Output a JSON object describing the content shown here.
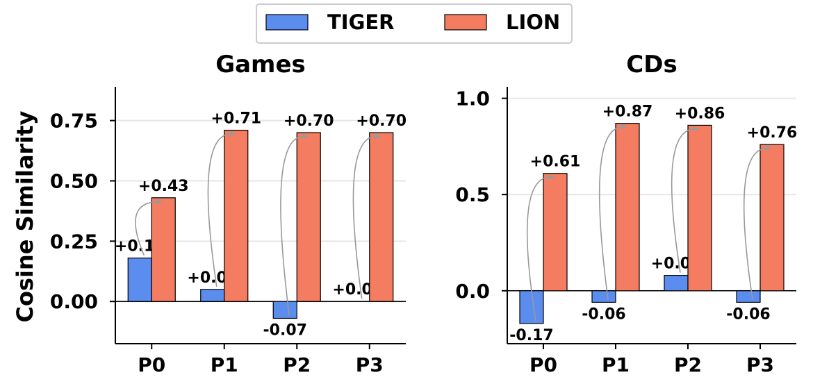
{
  "legend": {
    "entries": [
      {
        "name": "TIGER",
        "color": "#5b8def"
      },
      {
        "name": "LION",
        "color": "#f47d61"
      }
    ],
    "placement": "top-center"
  },
  "shared_ylabel": "Cosine Similarity",
  "chart_data": [
    {
      "type": "bar",
      "title": "Games",
      "categories": [
        "P0",
        "P1",
        "P2",
        "P3"
      ],
      "series": [
        {
          "name": "TIGER",
          "values": [
            0.18,
            0.05,
            -0.07,
            0.0
          ],
          "labels": [
            "+0.18",
            "+0.05",
            "-0.07",
            "+0.00"
          ],
          "color": "#5b8def"
        },
        {
          "name": "LION",
          "values": [
            0.43,
            0.71,
            0.7,
            0.7
          ],
          "labels": [
            "+0.43",
            "+0.71",
            "+0.70",
            "+0.70"
          ],
          "color": "#f47d61"
        }
      ],
      "ylabel": "Cosine Similarity",
      "ylim": [
        -0.175,
        0.89
      ],
      "yticks": [
        0.0,
        0.25,
        0.5,
        0.75
      ],
      "ytick_labels": [
        "0.00",
        "0.25",
        "0.50",
        "0.75"
      ],
      "grid": "horizontal",
      "annotations": "curved arrows from each TIGER bar to the paired LION bar"
    },
    {
      "type": "bar",
      "title": "CDs",
      "categories": [
        "P0",
        "P1",
        "P2",
        "P3"
      ],
      "series": [
        {
          "name": "TIGER",
          "values": [
            -0.17,
            -0.06,
            0.08,
            -0.06
          ],
          "labels": [
            "-0.17",
            "-0.06",
            "+0.08",
            "-0.06"
          ],
          "color": "#5b8def"
        },
        {
          "name": "LION",
          "values": [
            0.61,
            0.87,
            0.86,
            0.76
          ],
          "labels": [
            "+0.61",
            "+0.87",
            "+0.86",
            "+0.76"
          ],
          "color": "#f47d61"
        }
      ],
      "ylim": [
        -0.275,
        1.06
      ],
      "yticks": [
        0.0,
        0.5,
        1.0
      ],
      "ytick_labels": [
        "0.0",
        "0.5",
        "1.0"
      ],
      "grid": "horizontal",
      "annotations": "curved arrows from each TIGER bar to the paired LION bar"
    }
  ]
}
